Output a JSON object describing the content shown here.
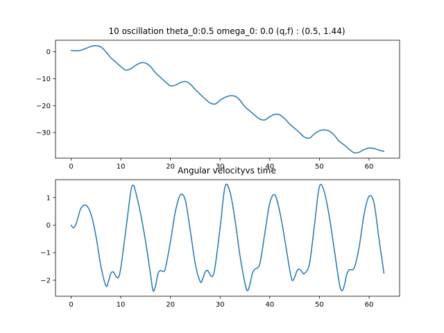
{
  "chart_data": [
    {
      "type": "line",
      "title": "10 oscillation theta_0:0.5 omega_0: 0.0 (q,f) : (0.5, 1.44)",
      "xlabel": "",
      "ylabel": "",
      "xlim": [
        -3.15,
        66.15
      ],
      "ylim": [
        -39.5,
        4.3
      ],
      "x_ticks": [
        0,
        10,
        20,
        30,
        40,
        50,
        60
      ],
      "x_tick_labels": [
        "0",
        "10",
        "20",
        "30",
        "40",
        "50",
        "60"
      ],
      "y_ticks": [
        0,
        -10,
        -20,
        -30
      ],
      "y_tick_labels": [
        "0",
        "−10",
        "−20",
        "−30"
      ],
      "grid": false,
      "color": "#1f77b4",
      "series": [
        {
          "x": [
            0,
            1,
            2,
            3,
            4,
            5,
            6,
            7,
            8,
            9,
            10,
            11,
            12,
            13,
            14,
            15,
            16,
            17,
            18,
            19,
            20,
            21,
            22,
            23,
            24,
            25,
            26,
            27,
            28,
            29,
            30,
            31,
            32,
            33,
            34,
            35,
            36,
            37,
            38,
            39,
            40,
            41,
            42,
            43,
            44,
            45,
            46,
            47,
            48,
            49,
            50,
            51,
            52,
            53,
            54,
            55,
            56,
            57,
            58,
            59,
            60,
            61,
            62,
            63
          ],
          "values": [
            0.5,
            0.4,
            0.6,
            1.3,
            2.0,
            2.3,
            1.8,
            0.0,
            -2.2,
            -3.8,
            -5.5,
            -6.8,
            -6.3,
            -5.0,
            -4.1,
            -4.2,
            -5.5,
            -7.8,
            -9.5,
            -11.2,
            -12.6,
            -12.4,
            -11.4,
            -11.0,
            -12.0,
            -14.0,
            -15.8,
            -17.5,
            -19.0,
            -19.4,
            -18.0,
            -16.9,
            -16.3,
            -16.5,
            -18.0,
            -20.4,
            -22.0,
            -23.6,
            -25.0,
            -25.3,
            -24.1,
            -23.2,
            -23.4,
            -24.8,
            -26.8,
            -28.4,
            -30.0,
            -31.7,
            -32.0,
            -30.5,
            -29.3,
            -29.0,
            -29.4,
            -31.0,
            -33.2,
            -34.6,
            -36.2,
            -37.5,
            -37.3,
            -36.3,
            -35.7,
            -35.9,
            -36.5,
            -37.0
          ]
        }
      ]
    },
    {
      "type": "line",
      "title": "Angular velocityvs time",
      "xlabel": "",
      "ylabel": "",
      "xlim": [
        -3.15,
        66.15
      ],
      "ylim": [
        -2.58,
        1.65
      ],
      "x_ticks": [
        0,
        10,
        20,
        30,
        40,
        50,
        60
      ],
      "x_tick_labels": [
        "0",
        "10",
        "20",
        "30",
        "40",
        "50",
        "60"
      ],
      "y_ticks": [
        1,
        0,
        -1,
        -2
      ],
      "y_tick_labels": [
        "1",
        "0",
        "−1",
        "−2"
      ],
      "grid": false,
      "color": "#1f77b4",
      "series": [
        {
          "x": [
            0,
            0.5,
            1,
            1.5,
            2,
            3,
            4,
            5,
            6,
            7,
            7.5,
            8,
            8.5,
            9,
            9.5,
            10,
            11,
            12,
            12.5,
            13,
            14,
            15,
            16,
            16.5,
            17,
            17.5,
            18,
            18.5,
            19,
            20,
            21,
            22,
            23,
            24,
            25,
            26,
            26.5,
            27,
            27.5,
            28,
            28.5,
            29,
            30,
            31,
            32,
            33,
            34,
            35,
            35.5,
            36,
            36.5,
            37,
            38,
            39,
            40,
            41,
            42,
            43,
            44,
            44.5,
            45,
            45.5,
            46,
            46.5,
            47,
            48,
            49,
            50,
            51,
            52,
            53,
            54,
            54.5,
            55,
            55.5,
            56,
            57,
            58,
            59,
            60,
            61,
            62,
            63
          ],
          "values": [
            0.0,
            -0.1,
            0.05,
            0.35,
            0.62,
            0.72,
            0.4,
            -0.4,
            -1.5,
            -2.2,
            -2.05,
            -1.75,
            -1.7,
            -1.85,
            -1.9,
            -1.55,
            -0.2,
            1.2,
            1.45,
            1.2,
            0.4,
            -0.6,
            -1.8,
            -2.38,
            -2.2,
            -1.75,
            -1.65,
            -1.68,
            -1.55,
            -0.6,
            0.5,
            1.1,
            0.9,
            -0.2,
            -1.4,
            -2.05,
            -1.95,
            -1.7,
            -1.65,
            -1.8,
            -1.85,
            -1.5,
            -0.1,
            1.4,
            1.2,
            0.2,
            -1.1,
            -2.1,
            -2.38,
            -2.15,
            -1.75,
            -1.6,
            -1.4,
            -0.3,
            0.8,
            1.1,
            0.5,
            -0.5,
            -1.6,
            -2.0,
            -1.9,
            -1.65,
            -1.6,
            -1.7,
            -1.75,
            -1.4,
            0.0,
            1.4,
            1.2,
            0.3,
            -0.9,
            -2.1,
            -2.38,
            -2.2,
            -1.8,
            -1.62,
            -1.55,
            -0.8,
            0.4,
            1.05,
            0.8,
            -0.5,
            -1.75
          ]
        }
      ]
    }
  ]
}
